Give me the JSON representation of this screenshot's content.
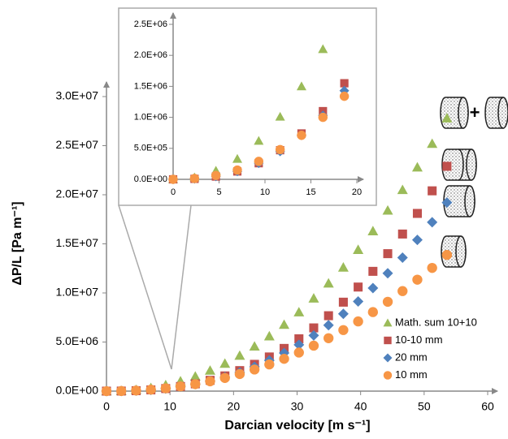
{
  "chart_data": {
    "type": "scatter",
    "x_label": "Darcian velocity [m s⁻¹]",
    "y_label": "ΔP/L [Pa m⁻¹]",
    "x": [
      0,
      2.33,
      4.66,
      6.99,
      9.32,
      11.65,
      13.98,
      16.31,
      18.64,
      20.97,
      23.3,
      25.63,
      27.96,
      30.29,
      32.62,
      34.95,
      37.28,
      39.61,
      41.94,
      44.27,
      46.6,
      48.93,
      51.26,
      53.59
    ],
    "series": [
      {
        "name": "Math. sum 10+10",
        "color": "#9bbb59",
        "marker": "triangle",
        "values": [
          0,
          31000,
          139000,
          330000,
          620000,
          1010000,
          1500000,
          2100000,
          2810000,
          3620000,
          4560000,
          5600000,
          6770000,
          8040000,
          9450000,
          10980000,
          12600000,
          14400000,
          16300000,
          18400000,
          20500000,
          22800000,
          25200000,
          27800000
        ]
      },
      {
        "name": "10-10 mm",
        "color": "#c0504d",
        "marker": "square",
        "values": [
          0,
          7700,
          45000,
          127000,
          260000,
          470000,
          740000,
          1100000,
          1550000,
          2090000,
          2730000,
          3480000,
          4350000,
          5330000,
          6440000,
          7680000,
          9060000,
          10600000,
          12200000,
          14000000,
          16000000,
          18100000,
          20400000,
          22900000
        ]
      },
      {
        "name": "20 mm",
        "color": "#4f81bd",
        "marker": "diamond",
        "values": [
          0,
          8600,
          47000,
          128000,
          260000,
          450000,
          710000,
          1030000,
          1430000,
          1910000,
          2480000,
          3130000,
          3880000,
          4720000,
          5670000,
          6720000,
          7870000,
          9130000,
          10500000,
          12000000,
          13600000,
          15400000,
          17200000,
          19200000
        ]
      },
      {
        "name": "10 mm",
        "color": "#f79646",
        "marker": "circle",
        "values": [
          0,
          14000,
          63000,
          150000,
          290000,
          480000,
          710000,
          1000000,
          1340000,
          1740000,
          2200000,
          2720000,
          3290000,
          3930000,
          4630000,
          5390000,
          6220000,
          7100000,
          8050000,
          9100000,
          10190000,
          11350000,
          12550000,
          13870000
        ]
      }
    ],
    "xlim": [
      0,
      60
    ],
    "xticks": [
      0,
      10,
      20,
      30,
      40,
      50,
      60
    ],
    "ylim": [
      0,
      30000000
    ],
    "yticks": [
      {
        "value": 0,
        "label": "0.0E+00"
      },
      {
        "value": 5000000,
        "label": "5.0E+06"
      },
      {
        "value": 10000000,
        "label": "1.0E+07"
      },
      {
        "value": 15000000,
        "label": "1.5E+07"
      },
      {
        "value": 20000000,
        "label": "2.0E+07"
      },
      {
        "value": 25000000,
        "label": "2.5E+07"
      },
      {
        "value": 30000000,
        "label": "3.0E+07"
      }
    ],
    "legend": "lower right",
    "inset": {
      "xlim": [
        0,
        20
      ],
      "xticks": [
        0,
        5,
        10,
        15,
        20
      ],
      "ylim": [
        0,
        2500000
      ],
      "yticks": [
        {
          "value": 0,
          "label": "0.0E+00"
        },
        {
          "value": 500000,
          "label": "5.0E+05"
        },
        {
          "value": 1000000,
          "label": "1.0E+06"
        },
        {
          "value": 1500000,
          "label": "1.5E+06"
        },
        {
          "value": 2000000,
          "label": "2.0E+06"
        },
        {
          "value": 2500000,
          "label": "2.5E+06"
        }
      ]
    },
    "annotations": [
      "+"
    ]
  }
}
